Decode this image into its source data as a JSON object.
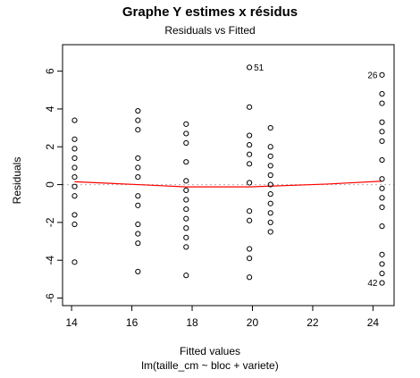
{
  "chart_data": {
    "type": "scatter",
    "title": "Graphe Y estimes x résidus",
    "subtitle": "Residuals vs Fitted",
    "xlabel": "Fitted values",
    "caption": "lm(taille_cm ~ bloc + variete)",
    "ylabel": "Residuals",
    "xlim": [
      13.7,
      24.7
    ],
    "ylim": [
      -6.4,
      7.4
    ],
    "x_ticks": [
      14,
      16,
      18,
      20,
      22,
      24
    ],
    "y_ticks": [
      -6,
      -4,
      -2,
      0,
      2,
      4,
      6
    ],
    "grid": false,
    "legend": "none",
    "point_color": "#000000",
    "smoother_color": "#ff0000",
    "reference_line_color": "#b0b0b0",
    "points": [
      {
        "x": 14.1,
        "y": 3.4
      },
      {
        "x": 14.1,
        "y": 2.4
      },
      {
        "x": 14.1,
        "y": 1.9
      },
      {
        "x": 14.1,
        "y": 1.4
      },
      {
        "x": 14.1,
        "y": 0.9
      },
      {
        "x": 14.1,
        "y": 0.4
      },
      {
        "x": 14.1,
        "y": -0.1
      },
      {
        "x": 14.1,
        "y": -0.6
      },
      {
        "x": 14.1,
        "y": -1.6
      },
      {
        "x": 14.1,
        "y": -2.1
      },
      {
        "x": 14.1,
        "y": -4.1
      },
      {
        "x": 16.2,
        "y": 3.9
      },
      {
        "x": 16.2,
        "y": 3.4
      },
      {
        "x": 16.2,
        "y": 2.9
      },
      {
        "x": 16.2,
        "y": 1.4
      },
      {
        "x": 16.2,
        "y": 0.9
      },
      {
        "x": 16.2,
        "y": 0.4
      },
      {
        "x": 16.2,
        "y": -0.6
      },
      {
        "x": 16.2,
        "y": -1.1
      },
      {
        "x": 16.2,
        "y": -2.1
      },
      {
        "x": 16.2,
        "y": -2.6
      },
      {
        "x": 16.2,
        "y": -3.1
      },
      {
        "x": 16.2,
        "y": -4.6
      },
      {
        "x": 17.8,
        "y": 3.2
      },
      {
        "x": 17.8,
        "y": 2.7
      },
      {
        "x": 17.8,
        "y": 2.2
      },
      {
        "x": 17.8,
        "y": 1.2
      },
      {
        "x": 17.8,
        "y": 0.2
      },
      {
        "x": 17.8,
        "y": -0.3
      },
      {
        "x": 17.8,
        "y": -0.8
      },
      {
        "x": 17.8,
        "y": -1.3
      },
      {
        "x": 17.8,
        "y": -1.8
      },
      {
        "x": 17.8,
        "y": -2.3
      },
      {
        "x": 17.8,
        "y": -2.8
      },
      {
        "x": 17.8,
        "y": -3.3
      },
      {
        "x": 17.8,
        "y": -4.8
      },
      {
        "x": 19.9,
        "y": 6.2
      },
      {
        "x": 19.9,
        "y": 4.1
      },
      {
        "x": 19.9,
        "y": 2.6
      },
      {
        "x": 19.9,
        "y": 2.1
      },
      {
        "x": 19.9,
        "y": 1.6
      },
      {
        "x": 19.9,
        "y": 1.1
      },
      {
        "x": 19.9,
        "y": 0.1
      },
      {
        "x": 19.9,
        "y": -1.4
      },
      {
        "x": 19.9,
        "y": -1.9
      },
      {
        "x": 19.9,
        "y": -3.4
      },
      {
        "x": 19.9,
        "y": -3.9
      },
      {
        "x": 19.9,
        "y": -4.9
      },
      {
        "x": 20.6,
        "y": 3.0
      },
      {
        "x": 20.6,
        "y": 2.0
      },
      {
        "x": 20.6,
        "y": 1.5
      },
      {
        "x": 20.6,
        "y": 1.0
      },
      {
        "x": 20.6,
        "y": 0.5
      },
      {
        "x": 20.6,
        "y": 0.0
      },
      {
        "x": 20.6,
        "y": -0.5
      },
      {
        "x": 20.6,
        "y": -1.0
      },
      {
        "x": 20.6,
        "y": -1.5
      },
      {
        "x": 20.6,
        "y": -2.0
      },
      {
        "x": 20.6,
        "y": -2.5
      },
      {
        "x": 24.3,
        "y": 5.8
      },
      {
        "x": 24.3,
        "y": 4.8
      },
      {
        "x": 24.3,
        "y": 4.3
      },
      {
        "x": 24.3,
        "y": 3.3
      },
      {
        "x": 24.3,
        "y": 2.8
      },
      {
        "x": 24.3,
        "y": 2.3
      },
      {
        "x": 24.3,
        "y": 1.3
      },
      {
        "x": 24.3,
        "y": 0.3
      },
      {
        "x": 24.3,
        "y": -0.2
      },
      {
        "x": 24.3,
        "y": -0.7
      },
      {
        "x": 24.3,
        "y": -1.2
      },
      {
        "x": 24.3,
        "y": -2.2
      },
      {
        "x": 24.3,
        "y": -3.7
      },
      {
        "x": 24.3,
        "y": -4.2
      },
      {
        "x": 24.3,
        "y": -4.7
      },
      {
        "x": 24.3,
        "y": -5.2
      }
    ],
    "smoother": [
      {
        "x": 14.1,
        "y": 0.15
      },
      {
        "x": 16.2,
        "y": 0.0
      },
      {
        "x": 17.8,
        "y": -0.12
      },
      {
        "x": 19.9,
        "y": -0.12
      },
      {
        "x": 20.6,
        "y": -0.08
      },
      {
        "x": 22.5,
        "y": 0.03
      },
      {
        "x": 24.3,
        "y": 0.18
      }
    ],
    "annotations": [
      {
        "text": "51",
        "x": 19.9,
        "y": 6.2,
        "side": "right"
      },
      {
        "text": "26",
        "x": 24.3,
        "y": 5.8,
        "side": "left"
      },
      {
        "text": "42",
        "x": 24.3,
        "y": -5.2,
        "side": "left"
      }
    ]
  }
}
